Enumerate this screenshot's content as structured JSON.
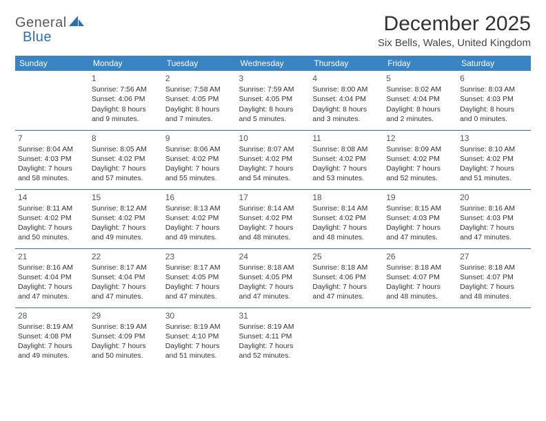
{
  "logo": {
    "text1": "General",
    "text2": "Blue"
  },
  "title": "December 2025",
  "location": "Six Bells, Wales, United Kingdom",
  "colors": {
    "header_bg": "#3b84c4",
    "header_text": "#ffffff",
    "divider": "#2f6fb0",
    "logo_gray": "#5a5a5a",
    "logo_blue": "#2f6fb0",
    "body_text": "#333333"
  },
  "day_headers": [
    "Sunday",
    "Monday",
    "Tuesday",
    "Wednesday",
    "Thursday",
    "Friday",
    "Saturday"
  ],
  "weeks": [
    [
      null,
      {
        "n": "1",
        "sr": "Sunrise: 7:56 AM",
        "ss": "Sunset: 4:06 PM",
        "d1": "Daylight: 8 hours",
        "d2": "and 9 minutes."
      },
      {
        "n": "2",
        "sr": "Sunrise: 7:58 AM",
        "ss": "Sunset: 4:05 PM",
        "d1": "Daylight: 8 hours",
        "d2": "and 7 minutes."
      },
      {
        "n": "3",
        "sr": "Sunrise: 7:59 AM",
        "ss": "Sunset: 4:05 PM",
        "d1": "Daylight: 8 hours",
        "d2": "and 5 minutes."
      },
      {
        "n": "4",
        "sr": "Sunrise: 8:00 AM",
        "ss": "Sunset: 4:04 PM",
        "d1": "Daylight: 8 hours",
        "d2": "and 3 minutes."
      },
      {
        "n": "5",
        "sr": "Sunrise: 8:02 AM",
        "ss": "Sunset: 4:04 PM",
        "d1": "Daylight: 8 hours",
        "d2": "and 2 minutes."
      },
      {
        "n": "6",
        "sr": "Sunrise: 8:03 AM",
        "ss": "Sunset: 4:03 PM",
        "d1": "Daylight: 8 hours",
        "d2": "and 0 minutes."
      }
    ],
    [
      {
        "n": "7",
        "sr": "Sunrise: 8:04 AM",
        "ss": "Sunset: 4:03 PM",
        "d1": "Daylight: 7 hours",
        "d2": "and 58 minutes."
      },
      {
        "n": "8",
        "sr": "Sunrise: 8:05 AM",
        "ss": "Sunset: 4:02 PM",
        "d1": "Daylight: 7 hours",
        "d2": "and 57 minutes."
      },
      {
        "n": "9",
        "sr": "Sunrise: 8:06 AM",
        "ss": "Sunset: 4:02 PM",
        "d1": "Daylight: 7 hours",
        "d2": "and 55 minutes."
      },
      {
        "n": "10",
        "sr": "Sunrise: 8:07 AM",
        "ss": "Sunset: 4:02 PM",
        "d1": "Daylight: 7 hours",
        "d2": "and 54 minutes."
      },
      {
        "n": "11",
        "sr": "Sunrise: 8:08 AM",
        "ss": "Sunset: 4:02 PM",
        "d1": "Daylight: 7 hours",
        "d2": "and 53 minutes."
      },
      {
        "n": "12",
        "sr": "Sunrise: 8:09 AM",
        "ss": "Sunset: 4:02 PM",
        "d1": "Daylight: 7 hours",
        "d2": "and 52 minutes."
      },
      {
        "n": "13",
        "sr": "Sunrise: 8:10 AM",
        "ss": "Sunset: 4:02 PM",
        "d1": "Daylight: 7 hours",
        "d2": "and 51 minutes."
      }
    ],
    [
      {
        "n": "14",
        "sr": "Sunrise: 8:11 AM",
        "ss": "Sunset: 4:02 PM",
        "d1": "Daylight: 7 hours",
        "d2": "and 50 minutes."
      },
      {
        "n": "15",
        "sr": "Sunrise: 8:12 AM",
        "ss": "Sunset: 4:02 PM",
        "d1": "Daylight: 7 hours",
        "d2": "and 49 minutes."
      },
      {
        "n": "16",
        "sr": "Sunrise: 8:13 AM",
        "ss": "Sunset: 4:02 PM",
        "d1": "Daylight: 7 hours",
        "d2": "and 49 minutes."
      },
      {
        "n": "17",
        "sr": "Sunrise: 8:14 AM",
        "ss": "Sunset: 4:02 PM",
        "d1": "Daylight: 7 hours",
        "d2": "and 48 minutes."
      },
      {
        "n": "18",
        "sr": "Sunrise: 8:14 AM",
        "ss": "Sunset: 4:02 PM",
        "d1": "Daylight: 7 hours",
        "d2": "and 48 minutes."
      },
      {
        "n": "19",
        "sr": "Sunrise: 8:15 AM",
        "ss": "Sunset: 4:03 PM",
        "d1": "Daylight: 7 hours",
        "d2": "and 47 minutes."
      },
      {
        "n": "20",
        "sr": "Sunrise: 8:16 AM",
        "ss": "Sunset: 4:03 PM",
        "d1": "Daylight: 7 hours",
        "d2": "and 47 minutes."
      }
    ],
    [
      {
        "n": "21",
        "sr": "Sunrise: 8:16 AM",
        "ss": "Sunset: 4:04 PM",
        "d1": "Daylight: 7 hours",
        "d2": "and 47 minutes."
      },
      {
        "n": "22",
        "sr": "Sunrise: 8:17 AM",
        "ss": "Sunset: 4:04 PM",
        "d1": "Daylight: 7 hours",
        "d2": "and 47 minutes."
      },
      {
        "n": "23",
        "sr": "Sunrise: 8:17 AM",
        "ss": "Sunset: 4:05 PM",
        "d1": "Daylight: 7 hours",
        "d2": "and 47 minutes."
      },
      {
        "n": "24",
        "sr": "Sunrise: 8:18 AM",
        "ss": "Sunset: 4:05 PM",
        "d1": "Daylight: 7 hours",
        "d2": "and 47 minutes."
      },
      {
        "n": "25",
        "sr": "Sunrise: 8:18 AM",
        "ss": "Sunset: 4:06 PM",
        "d1": "Daylight: 7 hours",
        "d2": "and 47 minutes."
      },
      {
        "n": "26",
        "sr": "Sunrise: 8:18 AM",
        "ss": "Sunset: 4:07 PM",
        "d1": "Daylight: 7 hours",
        "d2": "and 48 minutes."
      },
      {
        "n": "27",
        "sr": "Sunrise: 8:18 AM",
        "ss": "Sunset: 4:07 PM",
        "d1": "Daylight: 7 hours",
        "d2": "and 48 minutes."
      }
    ],
    [
      {
        "n": "28",
        "sr": "Sunrise: 8:19 AM",
        "ss": "Sunset: 4:08 PM",
        "d1": "Daylight: 7 hours",
        "d2": "and 49 minutes."
      },
      {
        "n": "29",
        "sr": "Sunrise: 8:19 AM",
        "ss": "Sunset: 4:09 PM",
        "d1": "Daylight: 7 hours",
        "d2": "and 50 minutes."
      },
      {
        "n": "30",
        "sr": "Sunrise: 8:19 AM",
        "ss": "Sunset: 4:10 PM",
        "d1": "Daylight: 7 hours",
        "d2": "and 51 minutes."
      },
      {
        "n": "31",
        "sr": "Sunrise: 8:19 AM",
        "ss": "Sunset: 4:11 PM",
        "d1": "Daylight: 7 hours",
        "d2": "and 52 minutes."
      },
      null,
      null,
      null
    ]
  ]
}
